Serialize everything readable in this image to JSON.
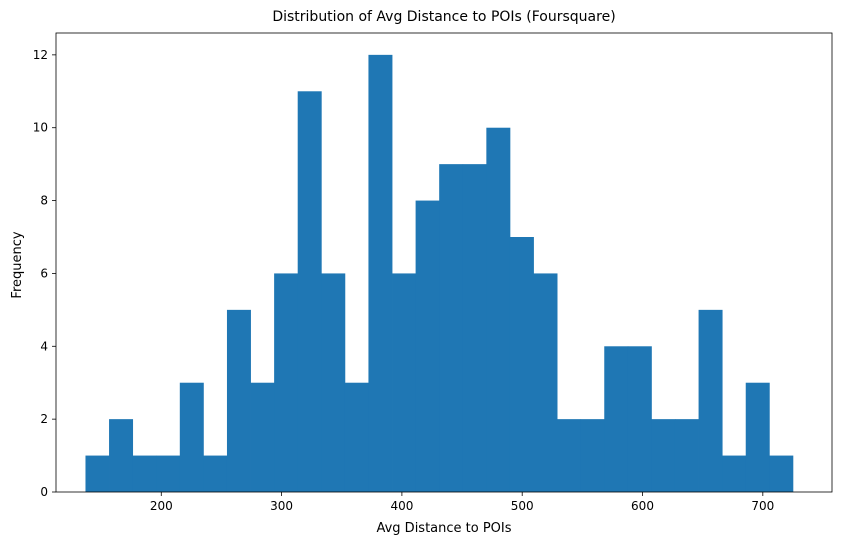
{
  "chart_data": {
    "type": "bar",
    "subtype": "histogram",
    "title": "Distribution of Avg Distance to POIs (Foursquare)",
    "xlabel": "Avg Distance to POIs",
    "ylabel": "Frequency",
    "xlim": [
      112.5,
      757.5
    ],
    "ylim": [
      0,
      12.6
    ],
    "bin_start": 137,
    "bin_width": 19.6,
    "values": [
      1,
      2,
      1,
      1,
      3,
      1,
      5,
      3,
      6,
      11,
      6,
      3,
      12,
      6,
      8,
      9,
      9,
      10,
      7,
      6,
      2,
      2,
      4,
      4,
      2,
      2,
      5,
      1,
      3,
      1
    ],
    "xticks": [
      200,
      300,
      400,
      500,
      600,
      700
    ],
    "yticks": [
      0,
      2,
      4,
      6,
      8,
      10,
      12
    ],
    "bar_color": "#1f77b4",
    "grid": false,
    "legend": false
  }
}
